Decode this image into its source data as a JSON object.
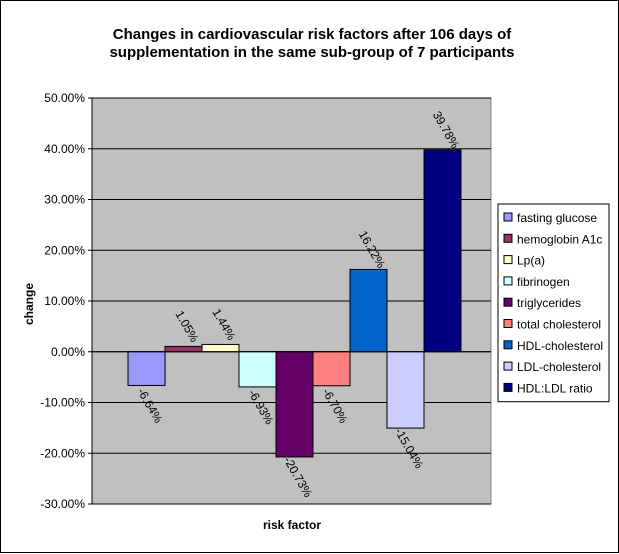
{
  "chart_data": {
    "type": "bar",
    "title_lines": [
      "Changes in cardiovascular risk factors after 106 days of",
      "supplementation in the same sub-group of 7 participants"
    ],
    "xlabel": "risk factor",
    "ylabel": "change",
    "ylim": [
      -0.3,
      0.5
    ],
    "y_ticks": [
      {
        "value": 0.5,
        "label": "50.00%"
      },
      {
        "value": 0.4,
        "label": "40.00%"
      },
      {
        "value": 0.3,
        "label": "30.00%"
      },
      {
        "value": 0.2,
        "label": "20.00%"
      },
      {
        "value": 0.1,
        "label": "10.00%"
      },
      {
        "value": 0.0,
        "label": "0.00%"
      },
      {
        "value": -0.1,
        "label": "-10.00%"
      },
      {
        "value": -0.2,
        "label": "-20.00%"
      },
      {
        "value": -0.3,
        "label": "-30.00%"
      }
    ],
    "grid": true,
    "legend_position": "right",
    "series": [
      {
        "name": "fasting glucose",
        "value": -0.0664,
        "label": "-6.64%",
        "color": "#9999ff"
      },
      {
        "name": "hemoglobin A1c",
        "value": 0.0105,
        "label": "1.05%",
        "color": "#993366"
      },
      {
        "name": "Lp(a)",
        "value": 0.0144,
        "label": "1.44%",
        "color": "#ffffcc"
      },
      {
        "name": "fibrinogen",
        "value": -0.0693,
        "label": "-6.93%",
        "color": "#ccffff"
      },
      {
        "name": "triglycerides",
        "value": -0.2073,
        "label": "-20.73%",
        "color": "#660066"
      },
      {
        "name": "total cholesterol",
        "value": -0.067,
        "label": "-6.70%",
        "color": "#ff8080"
      },
      {
        "name": "HDL-cholesterol",
        "value": 0.1622,
        "label": "16.22%",
        "color": "#0066cc"
      },
      {
        "name": "LDL-cholesterol",
        "value": -0.1504,
        "label": "-15.04%",
        "color": "#ccccff"
      },
      {
        "name": "HDL:LDL ratio",
        "value": 0.3978,
        "label": "39.78%",
        "color": "#000080"
      }
    ],
    "plot_background": "#c0c0c0"
  }
}
